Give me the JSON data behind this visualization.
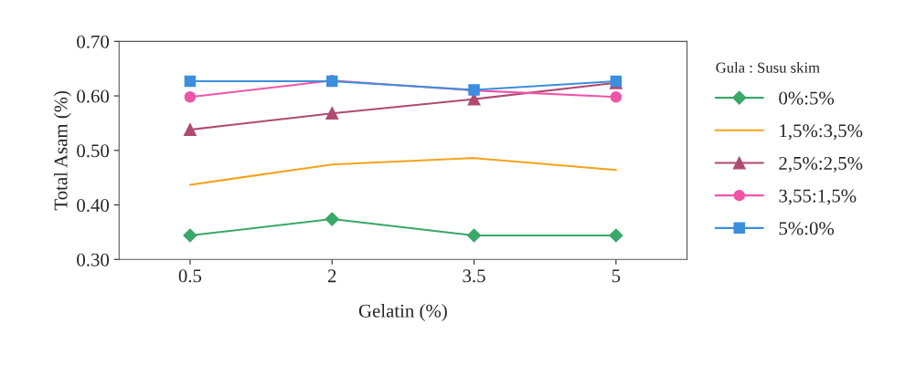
{
  "chart_data": {
    "type": "line",
    "xlabel": "Gelatin (%)",
    "ylabel": "Total Asam (%)",
    "legend_title": "Gula : Susu skim",
    "categories": [
      "0.5",
      "2",
      "3.5",
      "5"
    ],
    "ylim": [
      0.3,
      0.7
    ],
    "yticks": [
      {
        "value": 0.3,
        "label": "0.30"
      },
      {
        "value": 0.4,
        "label": "0.40"
      },
      {
        "value": 0.5,
        "label": "0.50"
      },
      {
        "value": 0.6,
        "label": "0.60"
      },
      {
        "value": 0.7,
        "label": "0.70"
      }
    ],
    "grid": false,
    "legend": "right",
    "series": [
      {
        "name": "0%:5%",
        "color": "#3aa868",
        "marker": "diamond",
        "values": [
          0.344,
          0.374,
          0.344,
          0.344
        ]
      },
      {
        "name": "1,5%:3,5%",
        "color": "#f7a21b",
        "marker": "none",
        "values": [
          0.437,
          0.474,
          0.486,
          0.464
        ]
      },
      {
        "name": "2,5%:2,5%",
        "color": "#b04a72",
        "marker": "triangle",
        "values": [
          0.538,
          0.568,
          0.594,
          0.624
        ]
      },
      {
        "name": "3,55:1,5%",
        "color": "#ee55a8",
        "marker": "circle",
        "values": [
          0.598,
          0.628,
          0.61,
          0.598
        ]
      },
      {
        "name": "5%:0%",
        "color": "#3b8fdc",
        "marker": "square",
        "values": [
          0.627,
          0.627,
          0.611,
          0.627
        ]
      }
    ]
  }
}
